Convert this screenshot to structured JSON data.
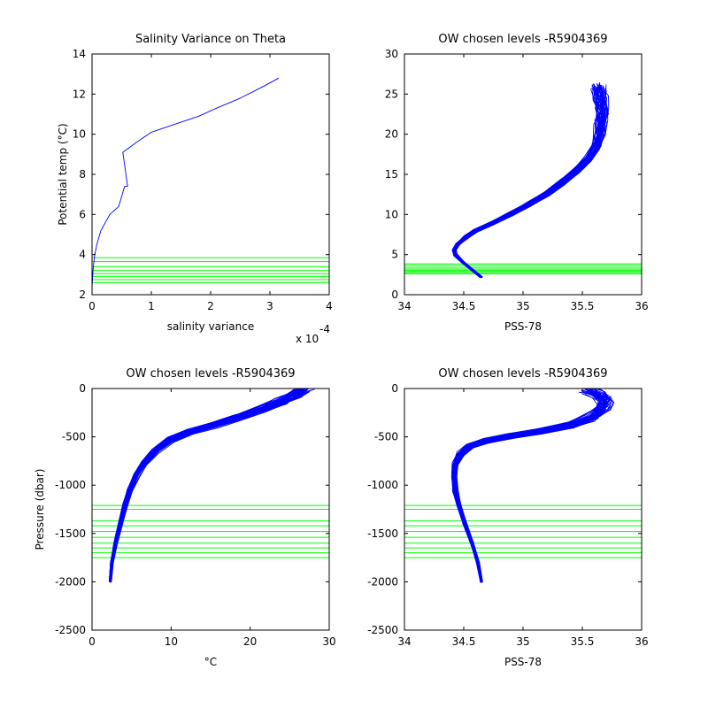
{
  "colors": {
    "profile": "#0000ff",
    "levels": "#00ff00"
  },
  "chart_data": [
    {
      "type": "line",
      "id": "salvar",
      "title": "Salinity Variance on Theta",
      "xlabel": "salinity variance",
      "ylabel": "Potential temp (°C)",
      "xlim": [
        0,
        4
      ],
      "ylim": [
        2,
        14
      ],
      "xticks": [
        0,
        1,
        2,
        3,
        4
      ],
      "yticks": [
        2,
        4,
        6,
        8,
        10,
        12,
        14
      ],
      "xticklabels": [
        "0",
        "1",
        "2",
        "3",
        "4"
      ],
      "yticklabels": [
        "2",
        "4",
        "6",
        "8",
        "10",
        "12",
        "14"
      ],
      "x_exponent_label": "x 10",
      "x_exponent_power": "-4",
      "series": [
        {
          "x": [
            0.0,
            0.02,
            0.04,
            0.08,
            0.15,
            0.3,
            0.45,
            0.55,
            0.6,
            0.52,
            0.75,
            1.0,
            1.4,
            1.8,
            2.1,
            2.5,
            2.9,
            3.15
          ],
          "y": [
            2.4,
            3.3,
            3.9,
            4.5,
            5.2,
            6.0,
            6.4,
            7.4,
            7.4,
            9.1,
            9.6,
            10.1,
            10.5,
            10.9,
            11.3,
            11.8,
            12.4,
            12.8
          ]
        }
      ],
      "hlines": [
        2.6,
        2.75,
        2.9,
        3.05,
        3.2,
        3.4,
        3.65,
        3.85
      ]
    },
    {
      "type": "line",
      "id": "ts",
      "title": "OW chosen levels -R5904369",
      "xlabel": "PSS-78",
      "ylabel": "",
      "xlim": [
        34,
        36
      ],
      "ylim": [
        0,
        30
      ],
      "xticks": [
        34,
        34.5,
        35,
        35.5,
        36
      ],
      "yticks": [
        0,
        5,
        10,
        15,
        20,
        25,
        30
      ],
      "xticklabels": [
        "34",
        "34.5",
        "35",
        "35.5",
        "36"
      ],
      "yticklabels": [
        "0",
        "5",
        "10",
        "15",
        "20",
        "25",
        "30"
      ],
      "series": [
        {
          "x": [
            34.65,
            34.5,
            34.43,
            34.42,
            34.45,
            34.52,
            34.6,
            34.75,
            34.9,
            35.05,
            35.2,
            35.33,
            35.45,
            35.55,
            35.62,
            35.65,
            35.66,
            35.67,
            35.66,
            35.64
          ],
          "y": [
            2.2,
            4.0,
            5.0,
            5.6,
            6.3,
            7.2,
            8.0,
            9.0,
            10.1,
            11.3,
            12.6,
            14.0,
            15.5,
            17.0,
            18.5,
            20.0,
            21.5,
            23.0,
            24.5,
            26.0
          ]
        }
      ],
      "hlines": [
        2.6,
        2.75,
        2.9,
        3.05,
        3.2,
        3.4,
        3.65,
        3.85
      ]
    },
    {
      "type": "line",
      "id": "tp",
      "title": "OW chosen levels -R5904369",
      "xlabel": "°C",
      "ylabel": "Pressure (dbar)",
      "xlim": [
        0,
        30
      ],
      "ylim": [
        -2500,
        0
      ],
      "xticks": [
        0,
        10,
        20,
        30
      ],
      "yticks": [
        -2500,
        -2000,
        -1500,
        -1000,
        -500,
        0
      ],
      "xticklabels": [
        "0",
        "10",
        "20",
        "30"
      ],
      "yticklabels": [
        "-2500",
        "-2000",
        "-1500",
        "-1000",
        "-500",
        "0"
      ],
      "series": [
        {
          "x": [
            2.3,
            2.5,
            3.0,
            3.6,
            4.2,
            4.8,
            5.6,
            6.6,
            8.0,
            10.0,
            12.5,
            15.5,
            18.5,
            21.5,
            24.0,
            26.0,
            27.0
          ],
          "y": [
            -2000,
            -1800,
            -1600,
            -1400,
            -1200,
            -1050,
            -900,
            -780,
            -650,
            -530,
            -450,
            -380,
            -300,
            -220,
            -140,
            -60,
            -5
          ]
        }
      ],
      "hlines": [
        -1210,
        -1250,
        -1370,
        -1420,
        -1480,
        -1540,
        -1600,
        -1650,
        -1700,
        -1750
      ]
    },
    {
      "type": "line",
      "id": "sp",
      "title": "OW chosen levels -R5904369",
      "xlabel": "PSS-78",
      "ylabel": "",
      "xlim": [
        34,
        36
      ],
      "ylim": [
        -2500,
        0
      ],
      "xticks": [
        34,
        34.5,
        35,
        35.5,
        36
      ],
      "yticks": [
        -2500,
        -2000,
        -1500,
        -1000,
        -500,
        0
      ],
      "xticklabels": [
        "34",
        "34.5",
        "35",
        "35.5",
        "36"
      ],
      "yticklabels": [
        "-2500",
        "-2000",
        "-1500",
        "-1000",
        "-500",
        "0"
      ],
      "series": [
        {
          "x": [
            34.65,
            34.62,
            34.57,
            34.51,
            34.46,
            34.43,
            34.42,
            34.43,
            34.47,
            34.55,
            34.7,
            34.9,
            35.15,
            35.4,
            35.58,
            35.68,
            35.7,
            35.62,
            35.55
          ],
          "y": [
            -2000,
            -1800,
            -1600,
            -1400,
            -1200,
            -1050,
            -900,
            -780,
            -680,
            -600,
            -540,
            -490,
            -440,
            -380,
            -300,
            -200,
            -120,
            -50,
            -5
          ]
        }
      ],
      "hlines": [
        -1210,
        -1250,
        -1370,
        -1420,
        -1480,
        -1540,
        -1600,
        -1650,
        -1700,
        -1750
      ]
    }
  ]
}
